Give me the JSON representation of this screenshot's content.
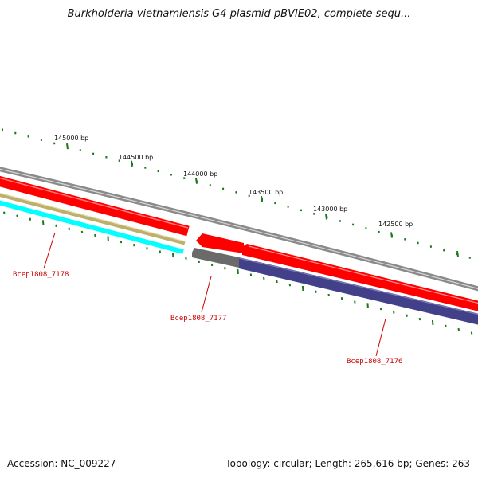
{
  "title": "Burkholderia vietnamiensis G4 plasmid pBVIE02, complete sequ...",
  "accession": "Accession: NC_009227",
  "summary": "Topology: circular; Length: 265,616 bp; Genes: 263",
  "ruler": {
    "labels": [
      "145000 bp",
      "144500 bp",
      "144000 bp",
      "143500 bp",
      "143000 bp",
      "142500 bp"
    ]
  },
  "genes": [
    {
      "label": "Bcep1808_7178"
    },
    {
      "label": "Bcep1808_7177"
    },
    {
      "label": "Bcep1808_7176"
    }
  ],
  "colors": {
    "backbone": "#8a8a8a",
    "cds": "#ff0000",
    "gene_a": "#bdb06a",
    "gene_b": "#00ffff",
    "gene_c": "#6a6a6a",
    "gene_d": "#43408a",
    "tick": "#1a7a1a",
    "gene_label": "#cc0000"
  }
}
